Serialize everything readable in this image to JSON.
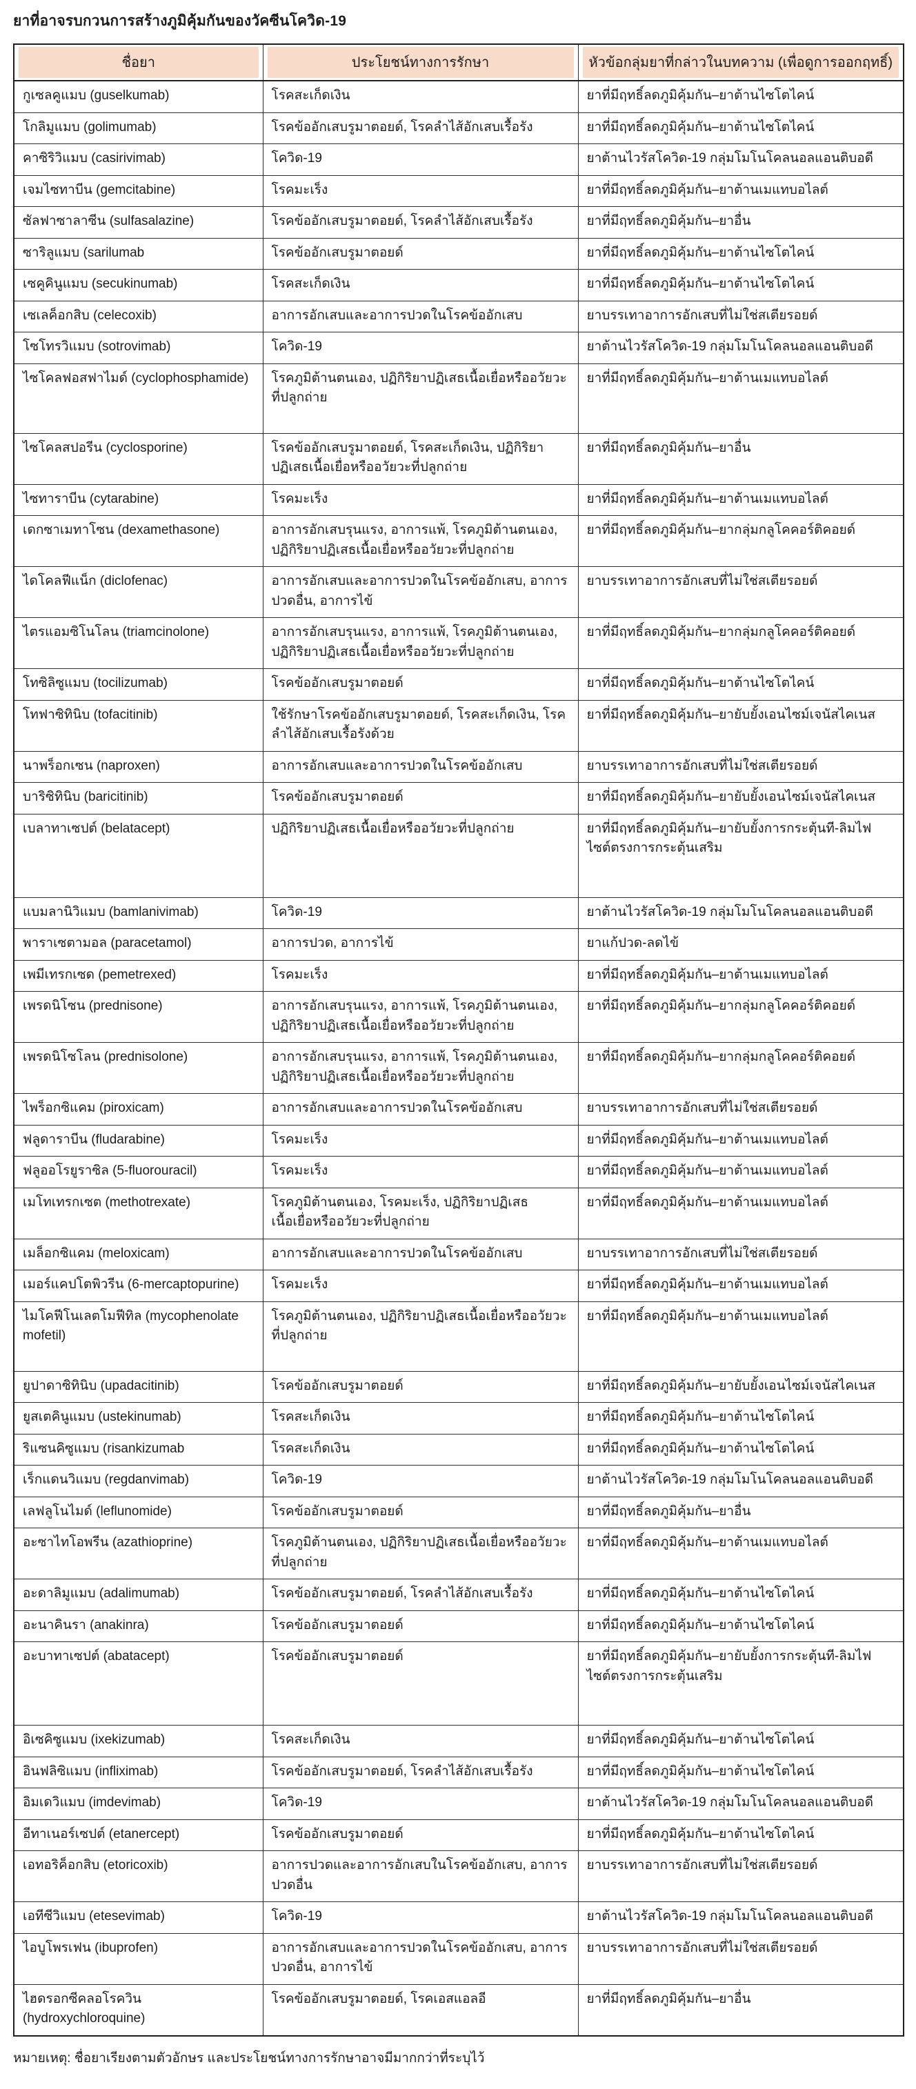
{
  "title": "ยาที่อาจรบกวนการสร้างภูมิคุ้มกันของวัคซีนโควิด-19",
  "footnote": "หมายเหตุ: ชื่อยาเรียงตามตัวอักษร และประโยชน์ทางการรักษาอาจมีมากกว่าที่ระบุไว้",
  "colors": {
    "header_bg": "#f8dbc8",
    "outer_border": "#1f1f1f",
    "inner_border": "#2e2e2e"
  },
  "table": {
    "headers": [
      "ชื่อยา",
      "ประโยชน์ทางการรักษา",
      "หัวข้อกลุ่มยาที่กล่าวในบทความ (เพื่อดูการออกฤทธิ์)"
    ],
    "rows": [
      [
        "กูเซลคูแมบ (guselkumab)",
        "โรคสะเก็ดเงิน",
        "ยาที่มีฤทธิ์ลดภูมิคุ้มกัน–ยาต้านไซโตไคน์"
      ],
      [
        "โกลิมูแมบ (golimumab)",
        "โรคข้ออักเสบรูมาตอยด์, โรคลำไส้อักเสบเรื้อรัง",
        "ยาที่มีฤทธิ์ลดภูมิคุ้มกัน–ยาต้านไซโตไคน์"
      ],
      [
        "คาซิริวิแมบ (casirivimab)",
        "โควิด-19",
        "ยาต้านไวรัสโควิด-19 กลุ่มโมโนโคลนอลแอนติบอดี"
      ],
      [
        "เจมไซทาบีน (gemcitabine)",
        "โรคมะเร็ง",
        "ยาที่มีฤทธิ์ลดภูมิคุ้มกัน–ยาต้านเมแทบอไลต์"
      ],
      [
        "ซัลฟาซาลาซีน (sulfasalazine)",
        "โรคข้ออักเสบรูมาตอยด์, โรคลำไส้อักเสบเรื้อรัง",
        "ยาที่มีฤทธิ์ลดภูมิคุ้มกัน–ยาอื่น"
      ],
      [
        "ซาริลูแมบ (sarilumab",
        "โรคข้ออักเสบรูมาตอยด์",
        "ยาที่มีฤทธิ์ลดภูมิคุ้มกัน–ยาต้านไซโตไคน์"
      ],
      [
        "เซคูคินูแมบ (secukinumab)",
        "โรคสะเก็ดเงิน",
        "ยาที่มีฤทธิ์ลดภูมิคุ้มกัน–ยาต้านไซโตไคน์"
      ],
      [
        "เซเลค็อกสิบ (celecoxib)",
        "อาการอักเสบและอาการปวดในโรคข้ออักเสบ",
        "ยาบรรเทาอาการอักเสบที่ไม่ใช่สเตียรอยด์"
      ],
      [
        "โซโทรวิแมบ (sotrovimab)",
        "โควิด-19",
        "ยาต้านไวรัสโควิด-19 กลุ่มโมโนโคลนอลแอนติบอดี"
      ],
      [
        "ไซโคลฟอสฟาไมด์ (cyclophosphamide)",
        "โรคภูมิต้านตนเอง, ปฏิกิริยาปฏิเสธเนื้อเยื่อหรืออวัยวะที่ปลูกถ่าย",
        "ยาที่มีฤทธิ์ลดภูมิคุ้มกัน–ยาต้านเมแทบอไลต์"
      ],
      [
        "ไซโคลสปอรีน (cyclosporine)",
        "โรคข้ออักเสบรูมาตอยด์, โรคสะเก็ดเงิน, ปฏิกิริยาปฏิเสธเนื้อเยื่อหรืออวัยวะที่ปลูกถ่าย",
        "ยาที่มีฤทธิ์ลดภูมิคุ้มกัน–ยาอื่น"
      ],
      [
        "ไซทาราบีน (cytarabine)",
        "โรคมะเร็ง",
        "ยาที่มีฤทธิ์ลดภูมิคุ้มกัน–ยาต้านเมแทบอไลต์"
      ],
      [
        "เดกซาเมทาโซน (dexamethasone)",
        "อาการอักเสบรุนแรง, อาการแพ้, โรคภูมิต้านตนเอง, ปฏิกิริยาปฏิเสธเนื้อเยื่อหรืออวัยวะที่ปลูกถ่าย",
        "ยาที่มีฤทธิ์ลดภูมิคุ้มกัน–ยากลุ่มกลูโคคอร์ติคอยด์"
      ],
      [
        "ไดโคลฟีแน็ก (diclofenac)",
        "อาการอักเสบและอาการปวดในโรคข้ออักเสบ, อาการปวดอื่น, อาการไข้",
        "ยาบรรเทาอาการอักเสบที่ไม่ใช่สเตียรอยด์"
      ],
      [
        "ไตรแอมซิโนโลน (triamcinolone)",
        "อาการอักเสบรุนแรง, อาการแพ้, โรคภูมิต้านตนเอง, ปฏิกิริยาปฏิเสธเนื้อเยื่อหรืออวัยวะที่ปลูกถ่าย",
        "ยาที่มีฤทธิ์ลดภูมิคุ้มกัน–ยากลุ่มกลูโคคอร์ติคอยด์"
      ],
      [
        "โทซิลิซูแมบ (tocilizumab)",
        "โรคข้ออักเสบรูมาตอยด์",
        "ยาที่มีฤทธิ์ลดภูมิคุ้มกัน–ยาต้านไซโตไคน์"
      ],
      [
        "โทฟาซิทินิบ (tofacitinib)",
        "ใช้รักษาโรคข้ออักเสบรูมาตอยด์, โรคสะเก็ดเงิน, โรคลำไส้อักเสบเรื้อรังด้วย",
        "ยาที่มีฤทธิ์ลดภูมิคุ้มกัน–ยายับยั้งเอนไซม์เจนัสไคเนส"
      ],
      [
        "นาพร็อกเซน (naproxen)",
        "อาการอักเสบและอาการปวดในโรคข้ออักเสบ",
        "ยาบรรเทาอาการอักเสบที่ไม่ใช่สเตียรอยด์"
      ],
      [
        "บาริซิทินิบ (baricitinib)",
        "โรคข้ออักเสบรูมาตอยด์",
        "ยาที่มีฤทธิ์ลดภูมิคุ้มกัน–ยายับยั้งเอนไซม์เจนัสไคเนส"
      ],
      [
        "เบลาทาเซปต์ (belatacept)",
        "ปฏิกิริยาปฏิเสธเนื้อเยื่อหรืออวัยวะที่ปลูกถ่าย",
        "ยาที่มีฤทธิ์ลดภูมิคุ้มกัน–ยายับยั้งการกระตุ้นที-ลิมไฟไซต์ตรงการกระตุ้นเสริม"
      ],
      [
        "แบมลานิวิแมบ (bamlanivimab)",
        "โควิด-19",
        "ยาต้านไวรัสโควิด-19 กลุ่มโมโนโคลนอลแอนติบอดี"
      ],
      [
        "พาราเซตามอล (paracetamol)",
        "อาการปวด, อาการไข้",
        "ยาแก้ปวด-ลดไข้"
      ],
      [
        "เพมีเทรกเซด (pemetrexed)",
        "โรคมะเร็ง",
        "ยาที่มีฤทธิ์ลดภูมิคุ้มกัน–ยาต้านเมแทบอไลต์"
      ],
      [
        "เพรดนิโซน (prednisone)",
        "อาการอักเสบรุนแรง, อาการแพ้, โรคภูมิต้านตนเอง, ปฏิกิริยาปฏิเสธเนื้อเยื่อหรืออวัยวะที่ปลูกถ่าย",
        "ยาที่มีฤทธิ์ลดภูมิคุ้มกัน–ยากลุ่มกลูโคคอร์ติคอยด์"
      ],
      [
        "เพรดนิโซโลน (prednisolone)",
        "อาการอักเสบรุนแรง, อาการแพ้, โรคภูมิต้านตนเอง, ปฏิกิริยาปฏิเสธเนื้อเยื่อหรืออวัยวะที่ปลูกถ่าย",
        "ยาที่มีฤทธิ์ลดภูมิคุ้มกัน–ยากลุ่มกลูโคคอร์ติคอยด์"
      ],
      [
        "ไพร็อกซิแคม (piroxicam)",
        "อาการอักเสบและอาการปวดในโรคข้ออักเสบ",
        "ยาบรรเทาอาการอักเสบที่ไม่ใช่สเตียรอยด์"
      ],
      [
        "ฟลูดาราบีน (fludarabine)",
        "โรคมะเร็ง",
        "ยาที่มีฤทธิ์ลดภูมิคุ้มกัน–ยาต้านเมแทบอไลต์"
      ],
      [
        "ฟลูออโรยูราซิล (5-fluorouracil)",
        "โรคมะเร็ง",
        "ยาที่มีฤทธิ์ลดภูมิคุ้มกัน–ยาต้านเมแทบอไลต์"
      ],
      [
        "เมโทเทรกเซต (methotrexate)",
        "โรคภูมิต้านตนเอง, โรคมะเร็ง, ปฏิกิริยาปฏิเสธเนื้อเยื่อหรืออวัยวะที่ปลูกถ่าย",
        "ยาที่มีฤทธิ์ลดภูมิคุ้มกัน–ยาต้านเมแทบอไลต์"
      ],
      [
        "เมล็อกซิแคม (meloxicam)",
        "อาการอักเสบและอาการปวดในโรคข้ออักเสบ",
        "ยาบรรเทาอาการอักเสบที่ไม่ใช่สเตียรอยด์"
      ],
      [
        "เมอร์แคปโตพิวรีน (6-mercaptopurine)",
        "โรคมะเร็ง",
        "ยาที่มีฤทธิ์ลดภูมิคุ้มกัน–ยาต้านเมแทบอไลต์"
      ],
      [
        "ไมโคฟีโนเลตโมฟีทิล (mycophenolate mofetil)",
        "โรคภูมิต้านตนเอง, ปฏิกิริยาปฏิเสธเนื้อเยื่อหรืออวัยวะที่ปลูกถ่าย",
        "ยาที่มีฤทธิ์ลดภูมิคุ้มกัน–ยาต้านเมแทบอไลต์"
      ],
      [
        "ยูปาดาซิทินิบ (upadacitinib)",
        "โรคข้ออักเสบรูมาตอยด์",
        "ยาที่มีฤทธิ์ลดภูมิคุ้มกัน–ยายับยั้งเอนไซม์เจนัสไคเนส"
      ],
      [
        "ยูสเตคินูแมบ (ustekinumab)",
        "โรคสะเก็ดเงิน",
        "ยาที่มีฤทธิ์ลดภูมิคุ้มกัน–ยาต้านไซโตไคน์"
      ],
      [
        "ริแซนคิซูแมบ (risankizumab",
        "โรคสะเก็ดเงิน",
        "ยาที่มีฤทธิ์ลดภูมิคุ้มกัน–ยาต้านไซโตไคน์"
      ],
      [
        "เร็กแดนวิแมบ (regdanvimab)",
        "โควิด-19",
        "ยาต้านไวรัสโควิด-19 กลุ่มโมโนโคลนอลแอนติบอดี"
      ],
      [
        "เลฟลูโนไมด์ (leflunomide)",
        "โรคข้ออักเสบรูมาตอยด์",
        "ยาที่มีฤทธิ์ลดภูมิคุ้มกัน–ยาอื่น"
      ],
      [
        "อะซาไทโอพรีน (azathioprine)",
        "โรคภูมิต้านตนเอง, ปฏิกิริยาปฏิเสธเนื้อเยื่อหรืออวัยวะที่ปลูกถ่าย",
        "ยาที่มีฤทธิ์ลดภูมิคุ้มกัน–ยาต้านเมแทบอไลต์"
      ],
      [
        "อะดาลิมูแมบ (adalimumab)",
        "โรคข้ออักเสบรูมาตอยด์, โรคลำไส้อักเสบเรื้อรัง",
        "ยาที่มีฤทธิ์ลดภูมิคุ้มกัน–ยาต้านไซโตไคน์"
      ],
      [
        "อะนาคินรา (anakinra)",
        "โรคข้ออักเสบรูมาตอยด์",
        "ยาที่มีฤทธิ์ลดภูมิคุ้มกัน–ยาต้านไซโตไคน์"
      ],
      [
        "อะบาทาเซปต์ (abatacept)",
        "โรคข้ออักเสบรูมาตอยด์",
        "ยาที่มีฤทธิ์ลดภูมิคุ้มกัน–ยายับยั้งการกระตุ้นที-ลิมไฟไซต์ตรงการกระตุ้นเสริม"
      ],
      [
        "อิเซคิซูแมบ (ixekizumab)",
        "โรคสะเก็ดเงิน",
        "ยาที่มีฤทธิ์ลดภูมิคุ้มกัน–ยาต้านไซโตไคน์"
      ],
      [
        "อินฟลิซิแมบ (infliximab)",
        "โรคข้ออักเสบรูมาตอยด์, โรคลำไส้อักเสบเรื้อรัง",
        "ยาที่มีฤทธิ์ลดภูมิคุ้มกัน–ยาต้านไซโตไคน์"
      ],
      [
        "อิมเดวิแมบ (imdevimab)",
        "โควิด-19",
        "ยาต้านไวรัสโควิด-19 กลุ่มโมโนโคลนอลแอนติบอดี"
      ],
      [
        "อีทาเนอร์เซปต์ (etanercept)",
        "โรคข้ออักเสบรูมาตอยด์",
        "ยาที่มีฤทธิ์ลดภูมิคุ้มกัน–ยาต้านไซโตไคน์"
      ],
      [
        "เอทอริค็อกสิบ (etoricoxib)",
        "อาการปวดและอาการอักเสบในโรคข้ออักเสบ, อาการปวดอื่น",
        "ยาบรรเทาอาการอักเสบที่ไม่ใช่สเตียรอยด์"
      ],
      [
        "เอทีซีวิแมบ (etesevimab)",
        "โควิด-19",
        "ยาต้านไวรัสโควิด-19 กลุ่มโมโนโคลนอลแอนติบอดี"
      ],
      [
        "ไอบูโพรเฟน (ibuprofen)",
        "อาการอักเสบและอาการปวดในโรคข้ออักเสบ, อาการปวดอื่น, อาการไข้",
        "ยาบรรเทาอาการอักเสบที่ไม่ใช่สเตียรอยด์"
      ],
      [
        "ไฮดรอกซีคลอโรควิน (hydroxychloroquine)",
        "โรคข้ออักเสบรูมาตอยด์, โรคเอสแอลอี",
        "ยาที่มีฤทธิ์ลดภูมิคุ้มกัน–ยาอื่น"
      ]
    ]
  }
}
